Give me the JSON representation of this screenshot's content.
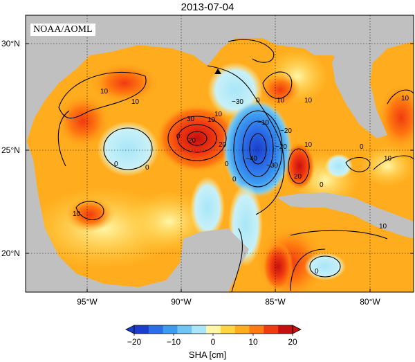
{
  "title": "2013-07-04",
  "credit": "NOAA/AOML",
  "lat_labels": [
    "30°N",
    "25°N",
    "20°N"
  ],
  "lon_labels": [
    "95°W",
    "90°W",
    "85°W",
    "80°W"
  ],
  "colorbar": {
    "ticks": [
      "−20",
      "−10",
      "0",
      "10",
      "20"
    ],
    "label": "SHA [cm]",
    "colors": [
      "#1c3ecc",
      "#2a6ee8",
      "#3d9bf0",
      "#6fc6f5",
      "#a8e6f8",
      "#fff6a8",
      "#ffd640",
      "#ffac1e",
      "#ff7a10",
      "#f03a10",
      "#c80f10"
    ]
  },
  "contour_labels": [
    "10",
    "10",
    "0",
    "10",
    "0",
    "0",
    "10",
    "20",
    "20",
    "−10",
    "−30",
    "−40",
    "0",
    "10",
    "20",
    "−30",
    "−20",
    "0",
    "10",
    "−20",
    "10",
    "0",
    "0",
    "10",
    "0",
    "10",
    "10",
    "30",
    "10",
    "0"
  ],
  "colors": {
    "land": "#c0c0c0",
    "background": "#ffffff"
  }
}
